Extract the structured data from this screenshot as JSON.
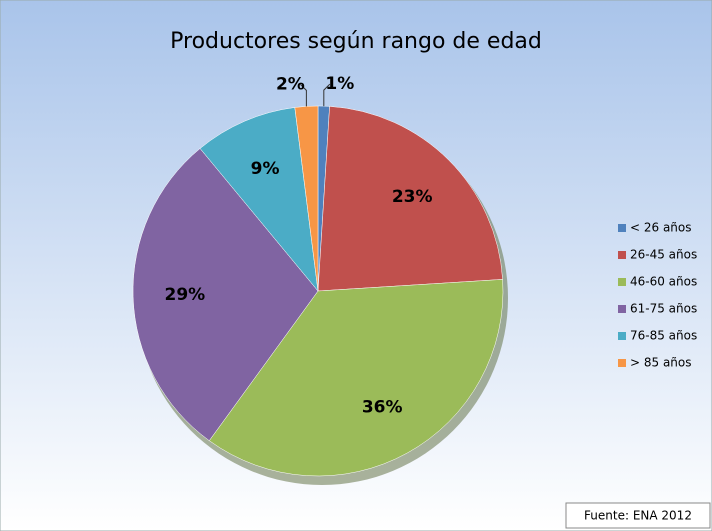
{
  "chart_data": {
    "type": "pie",
    "title": "Productores según rango de edad",
    "categories": [
      "< 26 años",
      "26-45 años",
      "46-60 años",
      "61-75 años",
      "76-85 años",
      "> 85 años"
    ],
    "values": [
      1,
      23,
      36,
      29,
      9,
      2
    ],
    "value_labels": [
      "1%",
      "23%",
      "36%",
      "29%",
      "9%",
      "2%"
    ],
    "colors": [
      "#4f81bd",
      "#c0504d",
      "#9bbb59",
      "#8064a2",
      "#4bacc6",
      "#f79646"
    ],
    "legend": "right",
    "annotation": "Fuente: ENA 2012"
  }
}
